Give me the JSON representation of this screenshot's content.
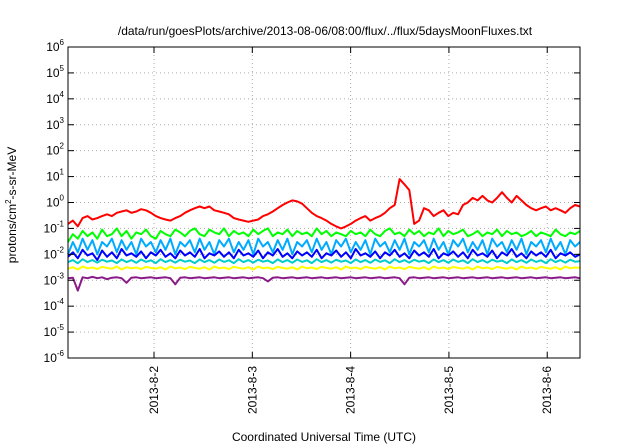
{
  "chart_data": {
    "type": "line",
    "title": "/data/run/goesPlots/archive/2013-08-06/08:00/flux/../flux/5daysMoonFluxes.txt",
    "xlabel": "Coordinated Universal Time (UTC)",
    "ylabel": "protons/cm²-s-sr-MeV",
    "ylabel_parts": {
      "before": "protons/cm",
      "sup": "2",
      "after": "-s-sr-MeV"
    },
    "y_scale": "log",
    "y_base": "10",
    "ylim": [
      1e-06,
      1000000.0
    ],
    "y_tick_exponents": [
      "6",
      "5",
      "4",
      "3",
      "2",
      "1",
      "0",
      "-1",
      "-2",
      "-3",
      "-4",
      "-5",
      "-6"
    ],
    "xlim": [
      "2013-08-01 03:00",
      "2013-08-06 08:00"
    ],
    "x_tick_labels": [
      "2013-8-2",
      "2013-8-3",
      "2013-8-4",
      "2013-8-5",
      "2013-8-6"
    ],
    "x_tick_times": [
      "2013-08-02 00:00",
      "2013-08-03 00:00",
      "2013-08-04 00:00",
      "2013-08-05 00:00",
      "2013-08-06 00:00"
    ],
    "grid": "dotted",
    "legend": "none",
    "series_time_range": [
      "2013-08-01 03:00",
      "2013-08-06 08:00"
    ],
    "series": [
      {
        "color": "#ff0000",
        "values": [
          0.15,
          0.2,
          0.12,
          0.25,
          0.3,
          0.22,
          0.25,
          0.3,
          0.35,
          0.3,
          0.4,
          0.45,
          0.5,
          0.4,
          0.45,
          0.55,
          0.5,
          0.4,
          0.3,
          0.25,
          0.22,
          0.2,
          0.25,
          0.3,
          0.4,
          0.5,
          0.6,
          0.7,
          0.6,
          0.7,
          0.5,
          0.45,
          0.4,
          0.35,
          0.25,
          0.22,
          0.2,
          0.18,
          0.2,
          0.22,
          0.3,
          0.35,
          0.45,
          0.6,
          0.8,
          1.0,
          1.2,
          1.1,
          0.9,
          0.6,
          0.4,
          0.3,
          0.25,
          0.2,
          0.15,
          0.12,
          0.1,
          0.12,
          0.15,
          0.2,
          0.25,
          0.3,
          0.2,
          0.25,
          0.3,
          0.4,
          0.6,
          0.8,
          8.0,
          5.0,
          3.0,
          0.15,
          0.2,
          0.6,
          0.5,
          0.3,
          0.4,
          0.5,
          0.3,
          0.4,
          0.35,
          0.8,
          1.0,
          1.5,
          1.2,
          1.8,
          1.2,
          1.0,
          1.5,
          2.5,
          1.5,
          1.0,
          1.8,
          1.2,
          0.8,
          0.6,
          0.5,
          0.6,
          0.7,
          0.5,
          0.6,
          0.5,
          0.4,
          0.6,
          0.8,
          0.7
        ]
      },
      {
        "color": "#00ff00",
        "values": [
          0.03,
          0.06,
          0.04,
          0.08,
          0.05,
          0.07,
          0.04,
          0.09,
          0.05,
          0.06,
          0.1,
          0.05,
          0.08,
          0.04,
          0.07,
          0.06,
          0.09,
          0.05,
          0.04,
          0.08,
          0.06,
          0.05,
          0.09,
          0.07,
          0.05,
          0.08,
          0.1,
          0.06,
          0.05,
          0.09,
          0.07,
          0.06,
          0.1,
          0.05,
          0.08,
          0.06,
          0.07,
          0.05,
          0.09,
          0.06,
          0.08,
          0.1,
          0.05,
          0.07,
          0.06,
          0.09,
          0.05,
          0.08,
          0.06,
          0.07,
          0.05,
          0.1,
          0.06,
          0.08,
          0.05,
          0.07,
          0.06,
          0.05,
          0.08,
          0.06,
          0.07,
          0.05,
          0.09,
          0.06,
          0.05,
          0.08,
          0.1,
          0.06,
          0.07,
          0.05,
          0.09,
          0.06,
          0.08,
          0.05,
          0.07,
          0.06,
          0.1,
          0.05,
          0.08,
          0.06,
          0.07,
          0.09,
          0.05,
          0.06,
          0.08,
          0.05,
          0.07,
          0.06,
          0.09,
          0.05,
          0.08,
          0.06,
          0.07,
          0.05,
          0.06,
          0.08,
          0.05,
          0.07,
          0.06,
          0.05,
          0.09,
          0.06,
          0.05,
          0.07,
          0.06,
          0.08
        ]
      },
      {
        "color": "#00aaff",
        "values": [
          0.01,
          0.03,
          0.012,
          0.04,
          0.015,
          0.035,
          0.01,
          0.03,
          0.02,
          0.04,
          0.012,
          0.035,
          0.015,
          0.03,
          0.01,
          0.04,
          0.02,
          0.03,
          0.012,
          0.035,
          0.015,
          0.04,
          0.01,
          0.03,
          0.02,
          0.035,
          0.012,
          0.04,
          0.015,
          0.03,
          0.01,
          0.035,
          0.02,
          0.04,
          0.012,
          0.03,
          0.015,
          0.035,
          0.01,
          0.04,
          0.02,
          0.03,
          0.012,
          0.035,
          0.015,
          0.04,
          0.01,
          0.03,
          0.02,
          0.035,
          0.012,
          0.04,
          0.015,
          0.03,
          0.01,
          0.035,
          0.02,
          0.04,
          0.012,
          0.03,
          0.015,
          0.035,
          0.01,
          0.04,
          0.02,
          0.03,
          0.012,
          0.035,
          0.015,
          0.04,
          0.01,
          0.03,
          0.02,
          0.035,
          0.012,
          0.04,
          0.015,
          0.03,
          0.01,
          0.035,
          0.02,
          0.04,
          0.012,
          0.03,
          0.015,
          0.035,
          0.01,
          0.04,
          0.02,
          0.03,
          0.012,
          0.035,
          0.015,
          0.04,
          0.01,
          0.03,
          0.02,
          0.035,
          0.012,
          0.04,
          0.015,
          0.03,
          0.01,
          0.035,
          0.02,
          0.03
        ]
      },
      {
        "color": "#0000ff",
        "values": [
          0.008,
          0.012,
          0.007,
          0.015,
          0.009,
          0.011,
          0.006,
          0.014,
          0.008,
          0.012,
          0.007,
          0.016,
          0.009,
          0.011,
          0.008,
          0.013,
          0.007,
          0.012,
          0.009,
          0.015,
          0.008,
          0.011,
          0.007,
          0.014,
          0.009,
          0.012,
          0.008,
          0.016,
          0.007,
          0.011,
          0.009,
          0.013,
          0.008,
          0.012,
          0.007,
          0.015,
          0.009,
          0.011,
          0.008,
          0.014,
          0.007,
          0.012,
          0.009,
          0.016,
          0.008,
          0.011,
          0.007,
          0.013,
          0.009,
          0.012,
          0.008,
          0.015,
          0.007,
          0.011,
          0.009,
          0.014,
          0.008,
          0.012,
          0.007,
          0.016,
          0.009,
          0.011,
          0.008,
          0.013,
          0.007,
          0.012,
          0.009,
          0.015,
          0.008,
          0.011,
          0.007,
          0.014,
          0.009,
          0.012,
          0.008,
          0.016,
          0.007,
          0.011,
          0.009,
          0.013,
          0.008,
          0.012,
          0.007,
          0.015,
          0.009,
          0.011,
          0.008,
          0.014,
          0.007,
          0.012,
          0.009,
          0.016,
          0.008,
          0.011,
          0.007,
          0.013,
          0.009,
          0.012,
          0.008,
          0.015,
          0.007,
          0.011,
          0.009,
          0.012,
          0.008,
          0.01
        ]
      },
      {
        "color": "#00cccc",
        "values": [
          0.005,
          0.006,
          0.0045,
          0.0065,
          0.005,
          0.006,
          0.0048,
          0.0062,
          0.0052,
          0.0058,
          0.0046,
          0.0064,
          0.005,
          0.006,
          0.0047,
          0.0063,
          0.0051,
          0.0059,
          0.0046,
          0.0065,
          0.005,
          0.006,
          0.0048,
          0.0062,
          0.0052,
          0.0058,
          0.0046,
          0.0064,
          0.005,
          0.006,
          0.0047,
          0.0063,
          0.0051,
          0.0059,
          0.0046,
          0.0065,
          0.005,
          0.006,
          0.0048,
          0.0062,
          0.0052,
          0.0058,
          0.0046,
          0.0064,
          0.005,
          0.006,
          0.0047,
          0.0063,
          0.0051,
          0.0059,
          0.0046,
          0.0065,
          0.005,
          0.006,
          0.0048,
          0.0062,
          0.0052,
          0.0058,
          0.0046,
          0.0064,
          0.005,
          0.006,
          0.0047,
          0.0063,
          0.0051,
          0.0059,
          0.0046,
          0.0065,
          0.005,
          0.006,
          0.0048,
          0.0062,
          0.0052,
          0.0058,
          0.0046,
          0.0064,
          0.005,
          0.006,
          0.0047,
          0.0063,
          0.0051,
          0.0059,
          0.0046,
          0.0065,
          0.005,
          0.006,
          0.0048,
          0.0062,
          0.0052,
          0.0058,
          0.0046,
          0.0064,
          0.005,
          0.006,
          0.0047,
          0.0063,
          0.0051,
          0.0059,
          0.0046,
          0.0065,
          0.005,
          0.006,
          0.0048,
          0.0062,
          0.0052,
          0.0055
        ]
      },
      {
        "color": "#ffff00",
        "values": [
          0.0028,
          0.0032,
          0.0026,
          0.0034,
          0.0029,
          0.0031,
          0.0027,
          0.0033,
          0.003,
          0.0028,
          0.0034,
          0.0026,
          0.0032,
          0.0029,
          0.0031,
          0.0027,
          0.0033,
          0.003,
          0.0028,
          0.0032,
          0.0026,
          0.0034,
          0.0029,
          0.0031,
          0.0027,
          0.0033,
          0.003,
          0.0028,
          0.0032,
          0.0026,
          0.0034,
          0.0029,
          0.0031,
          0.0027,
          0.0033,
          0.003,
          0.0028,
          0.0032,
          0.0026,
          0.0034,
          0.0029,
          0.0031,
          0.0027,
          0.0033,
          0.003,
          0.0028,
          0.0032,
          0.0026,
          0.0034,
          0.0029,
          0.0031,
          0.0027,
          0.0033,
          0.003,
          0.0028,
          0.0032,
          0.0026,
          0.0034,
          0.0029,
          0.0031,
          0.0027,
          0.0033,
          0.003,
          0.0028,
          0.0032,
          0.0026,
          0.0034,
          0.0029,
          0.0031,
          0.0027,
          0.0033,
          0.003,
          0.0028,
          0.0032,
          0.0026,
          0.0034,
          0.0029,
          0.0031,
          0.0027,
          0.0033,
          0.003,
          0.0028,
          0.0032,
          0.0026,
          0.0034,
          0.0029,
          0.0031,
          0.0027,
          0.0033,
          0.003,
          0.0028,
          0.0032,
          0.0026,
          0.0034,
          0.0029,
          0.0031,
          0.0027,
          0.0033,
          0.003,
          0.0028,
          0.0032,
          0.0026,
          0.0034,
          0.0029,
          0.0031,
          0.003
        ]
      },
      {
        "color": "#8b1a89",
        "values": [
          0.0012,
          0.00125,
          0.0004,
          0.0013,
          0.0012,
          0.00135,
          0.0012,
          0.0013,
          0.0011,
          0.00125,
          0.0013,
          0.0012,
          0.0008,
          0.00125,
          0.0013,
          0.0012,
          0.00125,
          0.0013,
          0.0012,
          0.00125,
          0.0013,
          0.0012,
          0.0007,
          0.00125,
          0.0013,
          0.0012,
          0.00125,
          0.0013,
          0.0012,
          0.00125,
          0.0013,
          0.0012,
          0.00125,
          0.0013,
          0.0012,
          0.00125,
          0.0013,
          0.0012,
          0.00125,
          0.0013,
          0.0012,
          0.0009,
          0.00125,
          0.0013,
          0.0012,
          0.00125,
          0.0013,
          0.0012,
          0.00125,
          0.0013,
          0.0012,
          0.00125,
          0.0013,
          0.0012,
          0.00125,
          0.0013,
          0.0012,
          0.00125,
          0.0013,
          0.0012,
          0.00125,
          0.0013,
          0.0012,
          0.00125,
          0.0013,
          0.0012,
          0.00125,
          0.0013,
          0.0012,
          0.0007,
          0.00125,
          0.0013,
          0.0012,
          0.00125,
          0.0013,
          0.0012,
          0.00125,
          0.0013,
          0.0012,
          0.00125,
          0.0013,
          0.0012,
          0.00125,
          0.0013,
          0.0012,
          0.00125,
          0.0013,
          0.0012,
          0.00125,
          0.0013,
          0.0012,
          0.00125,
          0.0013,
          0.0012,
          0.00125,
          0.0013,
          0.0012,
          0.00125,
          0.0013,
          0.0012,
          0.00125,
          0.0013,
          0.0012,
          0.00125,
          0.0013,
          0.0012
        ]
      }
    ]
  }
}
